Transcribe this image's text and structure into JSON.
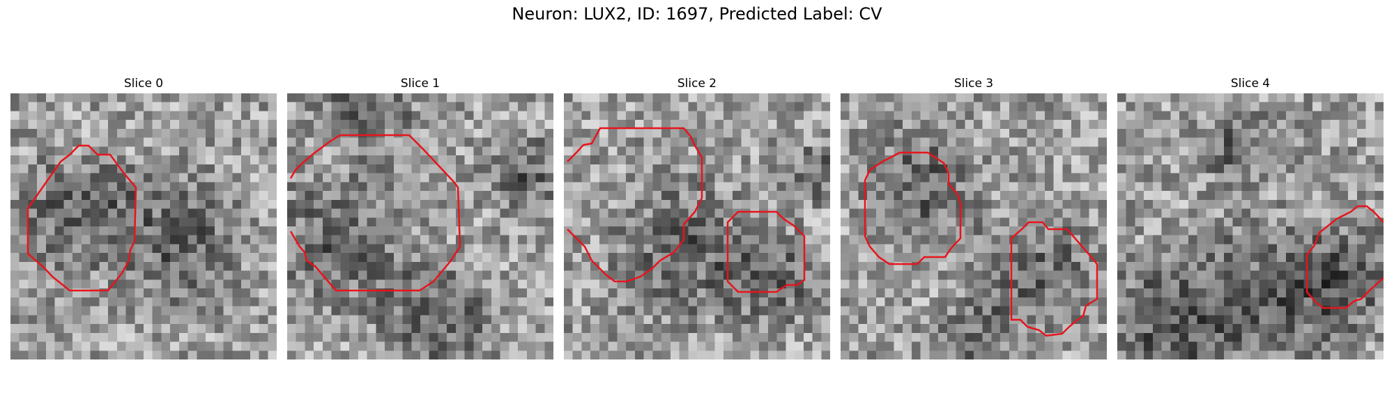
{
  "figure": {
    "title": "Neuron: LUX2, ID: 1697, Predicted Label: CV"
  },
  "colors": {
    "contour": "#e8141c",
    "background": "#ffffff"
  },
  "panels": [
    {
      "title": "Slice 0"
    },
    {
      "title": "Slice 1"
    },
    {
      "title": "Slice 2"
    },
    {
      "title": "Slice 3"
    },
    {
      "title": "Slice 4"
    }
  ]
}
